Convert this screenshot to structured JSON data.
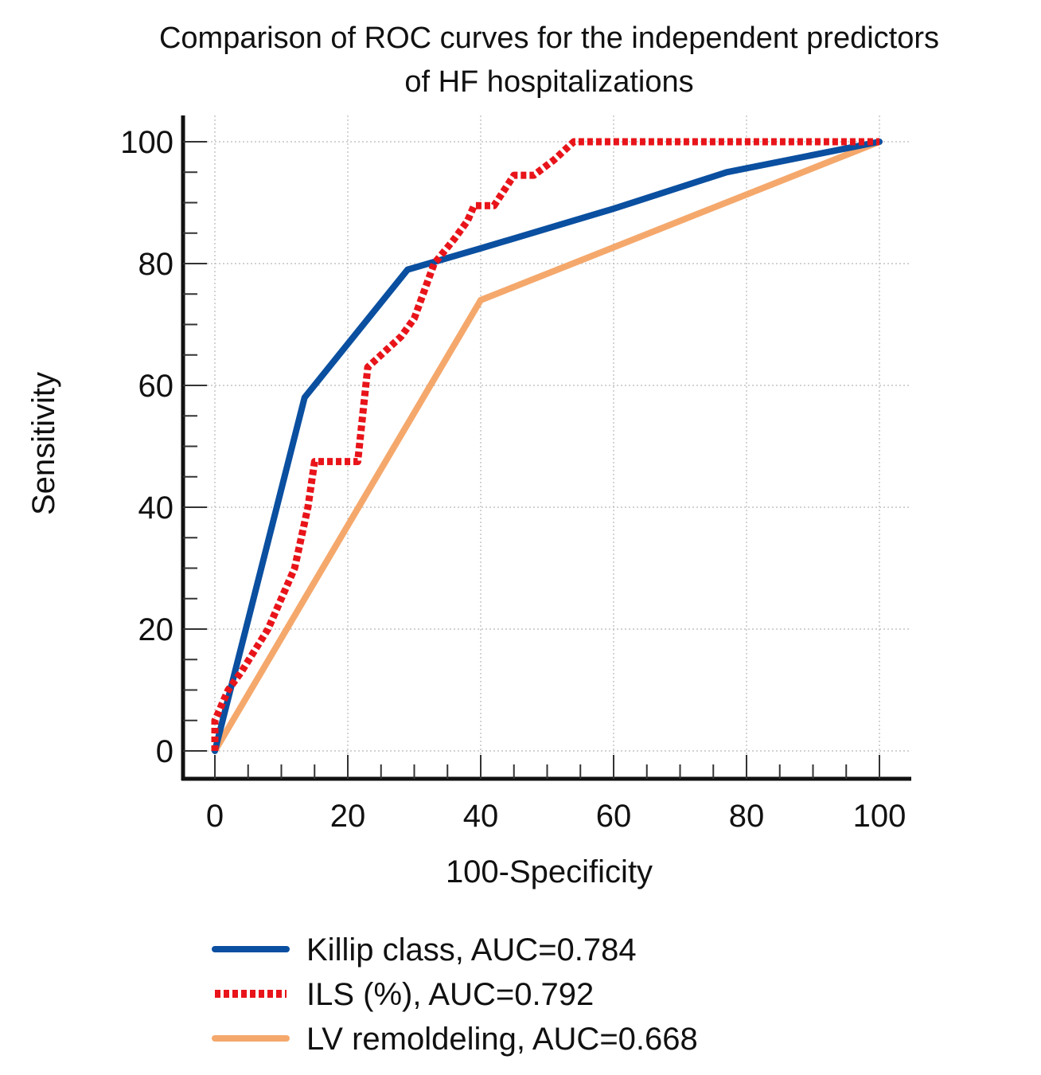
{
  "chart_data": {
    "type": "line",
    "title_lines": [
      "Comparison of ROC curves for the independent predictors",
      "of HF hospitalizations"
    ],
    "xlabel": "100-Specificity",
    "ylabel": "Sensitivity",
    "xlim": [
      0,
      100
    ],
    "ylim": [
      0,
      100
    ],
    "x_ticks": [
      0,
      20,
      40,
      60,
      80,
      100
    ],
    "y_ticks": [
      0,
      20,
      40,
      60,
      80,
      100
    ],
    "x_tick_labels": [
      "0",
      "20",
      "40",
      "60",
      "80",
      "100"
    ],
    "y_tick_labels": [
      "0",
      "20",
      "40",
      "60",
      "80",
      "100"
    ],
    "grid": true,
    "legend_position": "bottom",
    "series": [
      {
        "name": "Killip class, AUC=0.784",
        "color": "#0a4fa0",
        "style": "solid",
        "x": [
          0,
          13.5,
          29,
          40,
          60,
          77,
          100
        ],
        "y": [
          0,
          58,
          79,
          82.5,
          89,
          95,
          100
        ]
      },
      {
        "name": "ILS (%), AUC=0.792",
        "color": "#e8141a",
        "style": "dotted",
        "x": [
          0,
          0,
          2,
          4,
          8,
          12,
          14,
          15,
          21.5,
          23,
          28,
          30,
          33,
          36,
          38,
          39,
          42,
          45,
          46,
          48,
          51,
          54,
          60,
          70,
          80,
          90,
          100
        ],
        "y": [
          0,
          5,
          10,
          13,
          20,
          30,
          40,
          47.5,
          47.5,
          63,
          68,
          71,
          80,
          84,
          87,
          89.5,
          89.5,
          94.5,
          94.5,
          94.5,
          97,
          100,
          100,
          100,
          100,
          100,
          100
        ]
      },
      {
        "name": "LV remoldeling, AUC=0.668",
        "color": "#f5a86c",
        "style": "solid-thick",
        "x": [
          0,
          40,
          100
        ],
        "y": [
          0,
          74,
          100
        ]
      }
    ]
  }
}
